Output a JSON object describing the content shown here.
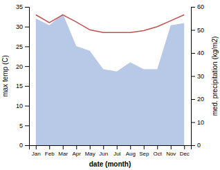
{
  "chart_data": {
    "type": "line",
    "categories": [
      "Jan",
      "Feb",
      "Mar",
      "Apr",
      "May",
      "Jun",
      "Jul",
      "Aug",
      "Sep",
      "Oct",
      "Nov",
      "Dec"
    ],
    "series": [
      {
        "type": "area",
        "axis": "y2",
        "color": "#b8c9e8",
        "values": [
          55.0,
          52.0,
          57.0,
          43.0,
          41.0,
          33.0,
          32.0,
          36.0,
          33.0,
          33.0,
          52.0,
          53.0
        ]
      },
      {
        "type": "line",
        "color": "#c0504d",
        "values": [
          33.0,
          31.0,
          33.0,
          31.2,
          29.2,
          28.5,
          28.5,
          28.5,
          29.0,
          30.0,
          31.5,
          33.0
        ]
      }
    ],
    "xlabel": "date (month)",
    "ylabel": "max temp (C)",
    "y2label": "med. precipitation (kg/m2)",
    "ylim": [
      0,
      35
    ],
    "yticks": [
      0,
      5,
      10,
      15,
      20,
      25,
      30,
      35
    ],
    "y2lim": [
      0,
      60
    ],
    "y2ticks": [
      0,
      10,
      20,
      30,
      40,
      50,
      60
    ]
  }
}
